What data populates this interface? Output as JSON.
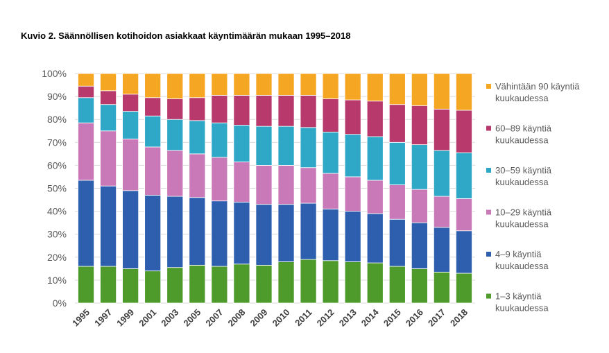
{
  "title": "Kuvio 2. Säännöllisen kotihoidon asiakkaat käyntimäärän mukaan 1995–2018",
  "chart_data": {
    "type": "bar",
    "stacked": true,
    "percent": true,
    "categories": [
      "1995",
      "1997",
      "1999",
      "2001",
      "2003",
      "2005",
      "2007",
      "2008",
      "2009",
      "2010",
      "2011",
      "2012",
      "2013",
      "2014",
      "2015",
      "2016",
      "2017",
      "2018"
    ],
    "ylim": [
      0,
      100
    ],
    "yticks": [
      "0%",
      "10%",
      "20%",
      "30%",
      "40%",
      "50%",
      "60%",
      "70%",
      "80%",
      "90%",
      "100%"
    ],
    "grid": true,
    "legend_position": "right",
    "series": [
      {
        "name": "1–3 käyntiä kuukaudessa",
        "label_lines": [
          "1–3 käyntiä",
          "kuukaudessa"
        ],
        "color": "#4e9a2a",
        "values": [
          16,
          16,
          15,
          14,
          15.5,
          16.5,
          16,
          17,
          16.5,
          18,
          19,
          18.5,
          18,
          17.5,
          16,
          15,
          13.5,
          13
        ]
      },
      {
        "name": "4–9 käyntiä kuukaudessa",
        "label_lines": [
          "4–9 käyntiä",
          "kuukaudessa"
        ],
        "color": "#2e5fae",
        "values": [
          37.5,
          35,
          34,
          33,
          31,
          29.5,
          28.5,
          27,
          26.5,
          25,
          24.5,
          22.5,
          22,
          21.5,
          20.5,
          20,
          19.5,
          18.5
        ]
      },
      {
        "name": "10–29 käyntiä kuukaudessa",
        "label_lines": [
          "10–29 käyntiä",
          "kuukaudessa"
        ],
        "color": "#c978b8",
        "values": [
          25,
          24,
          22.5,
          21,
          20,
          19,
          19,
          17.5,
          17,
          17,
          15.5,
          15.5,
          15,
          14.5,
          15,
          14.5,
          13.5,
          14
        ]
      },
      {
        "name": "30–59 käyntiä kuukaudessa",
        "label_lines": [
          "30–59 käyntiä",
          "kuukaudessa"
        ],
        "color": "#2fa8c8",
        "values": [
          11,
          11.5,
          12,
          13.5,
          13.5,
          14.5,
          15,
          16,
          17,
          17,
          17.5,
          18,
          18.5,
          19,
          18.5,
          19.5,
          20,
          20
        ]
      },
      {
        "name": "60–89 käyntiä kuukaudessa",
        "label_lines": [
          "60–89 käyntiä",
          "kuukaudessa"
        ],
        "color": "#b83a6c",
        "values": [
          5,
          6,
          7.5,
          8,
          9,
          10,
          12,
          13,
          13.5,
          13.5,
          14,
          14.5,
          15,
          15.5,
          16.5,
          17,
          18,
          18.5
        ]
      },
      {
        "name": "Vähintään 90 käyntiä kuukaudessa",
        "label_lines": [
          "Vähintään 90 käyntiä",
          "kuukaudessa"
        ],
        "color": "#f5a623",
        "values": [
          5.5,
          7.5,
          9,
          10.5,
          11,
          10.5,
          9.5,
          9.5,
          9.5,
          9.5,
          9.5,
          11,
          11.5,
          12,
          13.5,
          14,
          15.5,
          16
        ]
      }
    ]
  }
}
